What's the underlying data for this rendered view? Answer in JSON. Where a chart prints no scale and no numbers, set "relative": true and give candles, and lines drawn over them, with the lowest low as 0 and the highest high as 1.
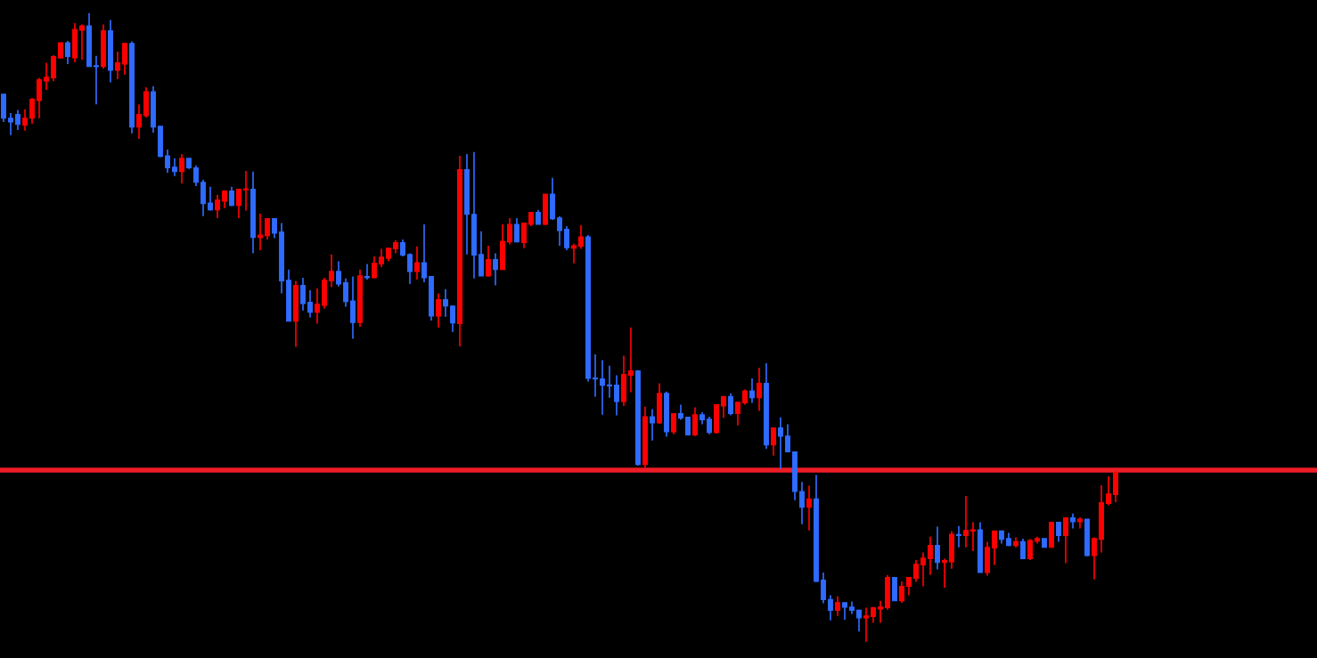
{
  "chart_data": {
    "type": "candlestick",
    "relative": true,
    "categories": [
      null,
      null,
      null,
      null,
      null,
      null,
      null,
      null,
      null,
      null,
      null,
      null,
      null,
      null,
      null,
      null,
      null,
      null,
      null,
      null,
      null,
      null,
      null,
      null,
      null,
      null,
      null,
      null,
      null,
      null,
      null,
      null,
      null,
      null,
      null,
      null,
      null,
      null,
      null,
      null,
      null,
      null,
      null,
      null,
      null,
      null,
      null,
      null,
      null,
      null,
      null,
      null,
      null,
      null,
      null,
      null,
      null,
      null,
      null,
      null,
      null,
      null,
      null,
      null,
      null,
      null,
      null,
      null,
      null,
      null,
      null,
      null,
      null,
      null,
      null,
      null,
      null,
      null,
      null,
      null,
      null,
      null,
      null,
      null,
      null,
      null,
      null,
      null,
      null,
      null,
      null,
      null,
      null,
      null,
      null,
      null,
      null,
      null,
      null,
      null,
      null,
      null,
      null,
      null,
      null,
      null,
      null,
      null,
      null,
      null,
      null,
      null,
      null,
      null,
      null,
      null,
      null,
      null,
      null,
      null,
      null,
      null,
      null,
      null,
      null,
      null,
      null,
      null,
      null,
      null,
      null,
      null,
      null,
      null,
      null,
      null,
      null,
      null,
      null,
      null,
      null,
      null,
      null,
      null,
      null,
      null,
      null,
      null,
      null,
      null,
      null,
      null,
      null,
      null,
      null,
      null,
      null
    ],
    "ohlc": [
      [
        0.871,
        0.871,
        0.827,
        0.833
      ],
      [
        0.833,
        0.841,
        0.806,
        0.827
      ],
      [
        0.839,
        0.846,
        0.814,
        0.823
      ],
      [
        0.822,
        0.847,
        0.813,
        0.833
      ],
      [
        0.833,
        0.865,
        0.824,
        0.863
      ],
      [
        0.861,
        0.897,
        0.833,
        0.894
      ],
      [
        0.892,
        0.921,
        0.878,
        0.898
      ],
      [
        0.897,
        0.933,
        0.892,
        0.931
      ],
      [
        0.929,
        0.953,
        0.928,
        0.953
      ],
      [
        0.953,
        0.956,
        0.919,
        0.931
      ],
      [
        0.929,
        0.984,
        0.922,
        0.974
      ],
      [
        0.973,
        0.982,
        0.926,
        0.98
      ],
      [
        0.98,
        1.0,
        0.915,
        0.915
      ],
      [
        0.916,
        0.932,
        0.855,
        0.915
      ],
      [
        0.915,
        0.982,
        0.912,
        0.972
      ],
      [
        0.972,
        0.989,
        0.89,
        0.909
      ],
      [
        0.909,
        0.939,
        0.895,
        0.921
      ],
      [
        0.919,
        0.953,
        0.902,
        0.952
      ],
      [
        0.952,
        0.955,
        0.809,
        0.819
      ],
      [
        0.819,
        0.855,
        0.8,
        0.839
      ],
      [
        0.837,
        0.882,
        0.834,
        0.875
      ],
      [
        0.875,
        0.884,
        0.81,
        0.819
      ],
      [
        0.82,
        0.82,
        0.771,
        0.772
      ],
      [
        0.773,
        0.783,
        0.746,
        0.754
      ],
      [
        0.755,
        0.769,
        0.741,
        0.748
      ],
      [
        0.748,
        0.776,
        0.729,
        0.769
      ],
      [
        0.769,
        0.769,
        0.752,
        0.754
      ],
      [
        0.754,
        0.758,
        0.725,
        0.731
      ],
      [
        0.731,
        0.735,
        0.677,
        0.697
      ],
      [
        0.698,
        0.724,
        0.686,
        0.687
      ],
      [
        0.687,
        0.711,
        0.674,
        0.703
      ],
      [
        0.701,
        0.718,
        0.69,
        0.717
      ],
      [
        0.717,
        0.724,
        0.693,
        0.694
      ],
      [
        0.694,
        0.72,
        0.674,
        0.72
      ],
      [
        0.719,
        0.749,
        0.686,
        0.72
      ],
      [
        0.72,
        0.748,
        0.618,
        0.643
      ],
      [
        0.643,
        0.681,
        0.623,
        0.647
      ],
      [
        0.646,
        0.673,
        0.64,
        0.673
      ],
      [
        0.673,
        0.673,
        0.642,
        0.65
      ],
      [
        0.652,
        0.666,
        0.554,
        0.574
      ],
      [
        0.575,
        0.592,
        0.51,
        0.51
      ],
      [
        0.51,
        0.574,
        0.469,
        0.567
      ],
      [
        0.567,
        0.579,
        0.527,
        0.538
      ],
      [
        0.54,
        0.559,
        0.516,
        0.524
      ],
      [
        0.524,
        0.562,
        0.506,
        0.537
      ],
      [
        0.535,
        0.579,
        0.53,
        0.575
      ],
      [
        0.574,
        0.616,
        0.564,
        0.589
      ],
      [
        0.589,
        0.605,
        0.565,
        0.569
      ],
      [
        0.571,
        0.578,
        0.533,
        0.541
      ],
      [
        0.542,
        0.581,
        0.482,
        0.508
      ],
      [
        0.508,
        0.592,
        0.501,
        0.582
      ],
      [
        0.581,
        0.601,
        0.576,
        0.579
      ],
      [
        0.579,
        0.613,
        0.579,
        0.602
      ],
      [
        0.601,
        0.625,
        0.596,
        0.612
      ],
      [
        0.61,
        0.627,
        0.605,
        0.626
      ],
      [
        0.625,
        0.639,
        0.618,
        0.635
      ],
      [
        0.635,
        0.64,
        0.613,
        0.615
      ],
      [
        0.616,
        0.618,
        0.569,
        0.589
      ],
      [
        0.589,
        0.629,
        0.576,
        0.603
      ],
      [
        0.603,
        0.664,
        0.572,
        0.579
      ],
      [
        0.581,
        0.581,
        0.511,
        0.518
      ],
      [
        0.518,
        0.554,
        0.5,
        0.544
      ],
      [
        0.544,
        0.561,
        0.517,
        0.534
      ],
      [
        0.534,
        0.535,
        0.493,
        0.507
      ],
      [
        0.506,
        0.773,
        0.47,
        0.751
      ],
      [
        0.751,
        0.776,
        0.616,
        0.68
      ],
      [
        0.68,
        0.779,
        0.578,
        0.615
      ],
      [
        0.616,
        0.653,
        0.582,
        0.582
      ],
      [
        0.582,
        0.63,
        0.581,
        0.608
      ],
      [
        0.608,
        0.618,
        0.567,
        0.592
      ],
      [
        0.592,
        0.664,
        0.592,
        0.637
      ],
      [
        0.636,
        0.674,
        0.632,
        0.664
      ],
      [
        0.664,
        0.674,
        0.636,
        0.636
      ],
      [
        0.635,
        0.666,
        0.626,
        0.666
      ],
      [
        0.664,
        0.683,
        0.661,
        0.683
      ],
      [
        0.683,
        0.687,
        0.664,
        0.664
      ],
      [
        0.664,
        0.712,
        0.663,
        0.712
      ],
      [
        0.712,
        0.738,
        0.671,
        0.673
      ],
      [
        0.674,
        0.677,
        0.63,
        0.654
      ],
      [
        0.656,
        0.661,
        0.623,
        0.627
      ],
      [
        0.626,
        0.633,
        0.602,
        0.63
      ],
      [
        0.629,
        0.663,
        0.625,
        0.644
      ],
      [
        0.644,
        0.647,
        0.414,
        0.419
      ],
      [
        0.419,
        0.457,
        0.39,
        0.418
      ],
      [
        0.418,
        0.448,
        0.361,
        0.408
      ],
      [
        0.408,
        0.439,
        0.388,
        0.407
      ],
      [
        0.408,
        0.424,
        0.36,
        0.382
      ],
      [
        0.382,
        0.455,
        0.375,
        0.425
      ],
      [
        0.424,
        0.5,
        0.397,
        0.431
      ],
      [
        0.431,
        0.432,
        0.28,
        0.282
      ],
      [
        0.282,
        0.374,
        0.276,
        0.358
      ],
      [
        0.358,
        0.37,
        0.32,
        0.348
      ],
      [
        0.348,
        0.411,
        0.347,
        0.395
      ],
      [
        0.395,
        0.398,
        0.326,
        0.334
      ],
      [
        0.334,
        0.363,
        0.33,
        0.363
      ],
      [
        0.363,
        0.377,
        0.353,
        0.356
      ],
      [
        0.357,
        0.358,
        0.329,
        0.329
      ],
      [
        0.329,
        0.373,
        0.327,
        0.361
      ],
      [
        0.361,
        0.365,
        0.346,
        0.353
      ],
      [
        0.354,
        0.358,
        0.33,
        0.333
      ],
      [
        0.333,
        0.377,
        0.331,
        0.377
      ],
      [
        0.375,
        0.39,
        0.356,
        0.39
      ],
      [
        0.39,
        0.395,
        0.36,
        0.363
      ],
      [
        0.363,
        0.381,
        0.344,
        0.381
      ],
      [
        0.38,
        0.401,
        0.377,
        0.399
      ],
      [
        0.399,
        0.419,
        0.38,
        0.388
      ],
      [
        0.388,
        0.436,
        0.367,
        0.411
      ],
      [
        0.411,
        0.443,
        0.307,
        0.313
      ],
      [
        0.313,
        0.341,
        0.296,
        0.34
      ],
      [
        0.34,
        0.357,
        0.275,
        0.327
      ],
      [
        0.327,
        0.346,
        0.302,
        0.302
      ],
      [
        0.302,
        0.302,
        0.225,
        0.239
      ],
      [
        0.239,
        0.254,
        0.187,
        0.214
      ],
      [
        0.214,
        0.248,
        0.177,
        0.227
      ],
      [
        0.227,
        0.265,
        0.095,
        0.096
      ],
      [
        0.098,
        0.11,
        0.061,
        0.067
      ],
      [
        0.067,
        0.074,
        0.034,
        0.05
      ],
      [
        0.05,
        0.072,
        0.041,
        0.062
      ],
      [
        0.062,
        0.062,
        0.035,
        0.055
      ],
      [
        0.055,
        0.064,
        0.044,
        0.05
      ],
      [
        0.05,
        0.051,
        0.016,
        0.038
      ],
      [
        0.038,
        0.054,
        0.0,
        0.041
      ],
      [
        0.04,
        0.055,
        0.03,
        0.054
      ],
      [
        0.052,
        0.065,
        0.03,
        0.055
      ],
      [
        0.054,
        0.106,
        0.051,
        0.102
      ],
      [
        0.102,
        0.103,
        0.065,
        0.065
      ],
      [
        0.065,
        0.096,
        0.062,
        0.088
      ],
      [
        0.088,
        0.102,
        0.074,
        0.102
      ],
      [
        0.101,
        0.13,
        0.095,
        0.123
      ],
      [
        0.122,
        0.142,
        0.088,
        0.133
      ],
      [
        0.132,
        0.167,
        0.106,
        0.153
      ],
      [
        0.153,
        0.183,
        0.115,
        0.126
      ],
      [
        0.126,
        0.132,
        0.086,
        0.129
      ],
      [
        0.127,
        0.176,
        0.116,
        0.171
      ],
      [
        0.17,
        0.184,
        0.15,
        0.169
      ],
      [
        0.169,
        0.232,
        0.15,
        0.177
      ],
      [
        0.176,
        0.19,
        0.144,
        0.178
      ],
      [
        0.178,
        0.19,
        0.11,
        0.11
      ],
      [
        0.11,
        0.159,
        0.105,
        0.15
      ],
      [
        0.149,
        0.176,
        0.122,
        0.176
      ],
      [
        0.176,
        0.177,
        0.156,
        0.163
      ],
      [
        0.164,
        0.173,
        0.152,
        0.153
      ],
      [
        0.153,
        0.166,
        0.15,
        0.159
      ],
      [
        0.159,
        0.164,
        0.132,
        0.132
      ],
      [
        0.132,
        0.163,
        0.13,
        0.161
      ],
      [
        0.16,
        0.167,
        0.156,
        0.164
      ],
      [
        0.164,
        0.164,
        0.15,
        0.15
      ],
      [
        0.15,
        0.19,
        0.15,
        0.19
      ],
      [
        0.19,
        0.19,
        0.159,
        0.169
      ],
      [
        0.169,
        0.197,
        0.125,
        0.197
      ],
      [
        0.197,
        0.204,
        0.18,
        0.191
      ],
      [
        0.191,
        0.198,
        0.18,
        0.195
      ],
      [
        0.195,
        0.195,
        0.136,
        0.137
      ],
      [
        0.137,
        0.166,
        0.099,
        0.164
      ],
      [
        0.163,
        0.249,
        0.142,
        0.221
      ],
      [
        0.22,
        0.263,
        0.217,
        0.235
      ],
      [
        0.234,
        0.271,
        0.222,
        0.269
      ]
    ],
    "colors": [
      "#2f6bff",
      "#2f6bff",
      "#2f6bff",
      "#ff0000",
      "#ff0000",
      "#ff0000",
      "#ff0000",
      "#ff0000",
      "#ff0000",
      "#2f6bff",
      "#ff0000",
      "#ff0000",
      "#2f6bff",
      "#2f6bff",
      "#ff0000",
      "#2f6bff",
      "#ff0000",
      "#ff0000",
      "#2f6bff",
      "#ff0000",
      "#ff0000",
      "#2f6bff",
      "#2f6bff",
      "#2f6bff",
      "#2f6bff",
      "#ff0000",
      "#2f6bff",
      "#2f6bff",
      "#2f6bff",
      "#2f6bff",
      "#ff0000",
      "#ff0000",
      "#2f6bff",
      "#ff0000",
      "#ff0000",
      "#2f6bff",
      "#ff0000",
      "#ff0000",
      "#2f6bff",
      "#2f6bff",
      "#2f6bff",
      "#ff0000",
      "#2f6bff",
      "#2f6bff",
      "#ff0000",
      "#ff0000",
      "#ff0000",
      "#2f6bff",
      "#2f6bff",
      "#2f6bff",
      "#ff0000",
      "#2f6bff",
      "#ff0000",
      "#ff0000",
      "#ff0000",
      "#ff0000",
      "#2f6bff",
      "#2f6bff",
      "#ff0000",
      "#2f6bff",
      "#2f6bff",
      "#ff0000",
      "#2f6bff",
      "#2f6bff",
      "#ff0000",
      "#2f6bff",
      "#2f6bff",
      "#2f6bff",
      "#ff0000",
      "#2f6bff",
      "#ff0000",
      "#ff0000",
      "#2f6bff",
      "#ff0000",
      "#ff0000",
      "#2f6bff",
      "#ff0000",
      "#2f6bff",
      "#2f6bff",
      "#2f6bff",
      "#ff0000",
      "#ff0000",
      "#2f6bff",
      "#2f6bff",
      "#2f6bff",
      "#2f6bff",
      "#2f6bff",
      "#ff0000",
      "#ff0000",
      "#2f6bff",
      "#ff0000",
      "#2f6bff",
      "#ff0000",
      "#2f6bff",
      "#ff0000",
      "#2f6bff",
      "#2f6bff",
      "#ff0000",
      "#2f6bff",
      "#2f6bff",
      "#ff0000",
      "#ff0000",
      "#2f6bff",
      "#ff0000",
      "#ff0000",
      "#2f6bff",
      "#ff0000",
      "#2f6bff",
      "#ff0000",
      "#2f6bff",
      "#2f6bff",
      "#2f6bff",
      "#2f6bff",
      "#ff0000",
      "#2f6bff",
      "#2f6bff",
      "#2f6bff",
      "#ff0000",
      "#2f6bff",
      "#2f6bff",
      "#2f6bff",
      "#ff0000",
      "#ff0000",
      "#ff0000",
      "#ff0000",
      "#2f6bff",
      "#ff0000",
      "#ff0000",
      "#ff0000",
      "#ff0000",
      "#ff0000",
      "#2f6bff",
      "#ff0000",
      "#ff0000",
      "#2f6bff",
      "#ff0000",
      "#ff0000",
      "#2f6bff",
      "#ff0000",
      "#ff0000",
      "#2f6bff",
      "#2f6bff",
      "#ff0000",
      "#2f6bff",
      "#ff0000",
      "#ff0000",
      "#2f6bff",
      "#ff0000",
      "#2f6bff",
      "#ff0000",
      "#2f6bff",
      "#ff0000",
      "#2f6bff",
      "#ff0000",
      "#ff0000",
      "#ff0000",
      "#ff0000"
    ],
    "ref_lines": [
      {
        "axis": "y",
        "value": 0.273,
        "color": "#ee1c25",
        "line_style": "solid"
      }
    ]
  }
}
